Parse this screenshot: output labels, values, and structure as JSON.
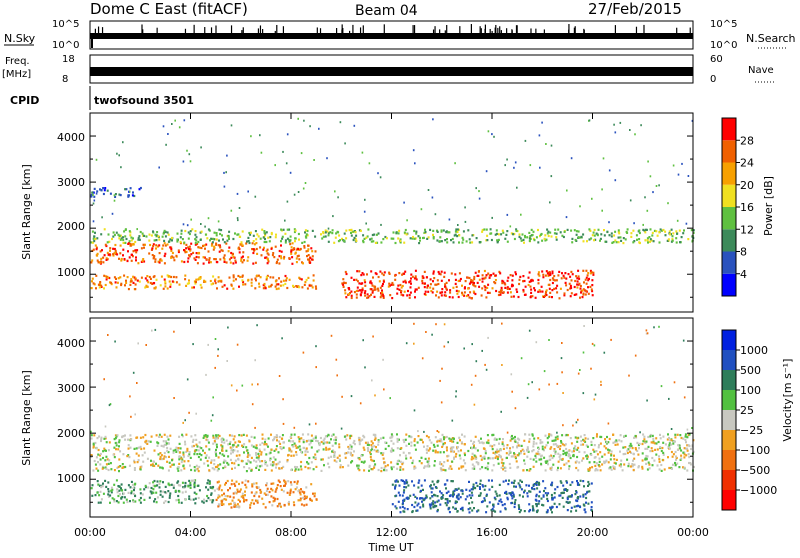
{
  "header": {
    "station": "Dome C East (fitACF)",
    "beam": "Beam 04",
    "date": "27/Feb/2015"
  },
  "noise_panel": {
    "left_label": "N.Sky",
    "left_ticks": [
      "10^5",
      "10^0"
    ],
    "right_label": "N.Search",
    "right_ticks": [
      "10^5",
      "10^0"
    ]
  },
  "freq_panel": {
    "left_label_top": "Freq.",
    "left_label_bottom": "[MHz]",
    "left_ticks": [
      "18",
      "8"
    ],
    "right_label": "Nave",
    "right_ticks": [
      "60",
      "0"
    ]
  },
  "cpid": {
    "label": "CPID",
    "value": "twofsound 3501"
  },
  "x_axis": {
    "label": "Time UT",
    "ticks": [
      "00:00",
      "04:00",
      "08:00",
      "12:00",
      "16:00",
      "20:00",
      "00:00"
    ]
  },
  "power_panel": {
    "ylabel": "Slant Range [km]",
    "yticks": [
      "1000",
      "2000",
      "3000",
      "4000"
    ],
    "colorbar_label": "Power [dB]",
    "colorbar_ticks": [
      "4",
      "8",
      "12",
      "16",
      "20",
      "24",
      "28"
    ],
    "colors": [
      "#0000ff",
      "#2a52be",
      "#3c8a5a",
      "#5fc040",
      "#f0e020",
      "#f7a000",
      "#f06000",
      "#ff0000"
    ]
  },
  "velocity_panel": {
    "ylabel": "Slant Range [km]",
    "yticks": [
      "1000",
      "2000",
      "3000",
      "4000"
    ],
    "colorbar_label_main": "Velocity",
    "colorbar_label_unit": "[m s⁻¹]",
    "colorbar_ticks": [
      "1000",
      "500",
      "100",
      "25",
      "−25",
      "−100",
      "−500",
      "−1000"
    ],
    "colors": [
      "#0020e0",
      "#2050c0",
      "#2e7d5a",
      "#52c040",
      "#c8c8c0",
      "#f0a020",
      "#f07010",
      "#f03000",
      "#ff0000"
    ]
  },
  "chart_data": [
    {
      "type": "line",
      "title": "N.Sky / N.Search",
      "x": [
        "00:00",
        "04:00",
        "08:00",
        "12:00",
        "16:00",
        "20:00",
        "00:00"
      ],
      "ylim": [
        "10^0",
        "10^5"
      ]
    },
    {
      "type": "line",
      "title": "Freq. [MHz] / Nave",
      "series": [
        {
          "name": "Freq. [MHz]",
          "ylim": [
            8,
            18
          ]
        },
        {
          "name": "Nave",
          "ylim": [
            0,
            60
          ]
        }
      ]
    },
    {
      "type": "heatmap",
      "ylabel": "Slant Range [km]",
      "xlabel": "Time UT",
      "xlim": [
        "00:00",
        "24:00"
      ],
      "ylim": [
        180,
        4500
      ],
      "colorbar": {
        "label": "Power [dB]",
        "range": [
          0,
          32
        ],
        "ticks": [
          4,
          8,
          12,
          16,
          20,
          24,
          28
        ]
      },
      "bands": [
        {
          "x_range": [
            "00:00",
            "09:00"
          ],
          "range_km": [
            1250,
            1700
          ],
          "power_db": 26
        },
        {
          "x_range": [
            "00:00",
            "09:00"
          ],
          "range_km": [
            700,
            1000
          ],
          "power_db": 24
        },
        {
          "x_range": [
            "10:00",
            "20:00"
          ],
          "range_km": [
            500,
            1100
          ],
          "power_db": 28
        },
        {
          "x_range": [
            "00:00",
            "24:00"
          ],
          "range_km": [
            1700,
            2000
          ],
          "power_db": 14
        },
        {
          "x_range": [
            "00:00",
            "02:00"
          ],
          "range_km": [
            2700,
            2900
          ],
          "power_db": 6
        }
      ]
    },
    {
      "type": "heatmap",
      "ylabel": "Slant Range [km]",
      "xlabel": "Time UT",
      "xlim": [
        "00:00",
        "24:00"
      ],
      "ylim": [
        180,
        4500
      ],
      "colorbar": {
        "label": "Velocity [m s⁻¹]",
        "ticks": [
          1000,
          500,
          100,
          25,
          -25,
          -100,
          -500,
          -1000
        ]
      },
      "bands": [
        {
          "x_range": [
            "00:00",
            "24:00"
          ],
          "range_km": [
            1200,
            2000
          ],
          "velocity": 0
        },
        {
          "x_range": [
            "00:00",
            "05:00"
          ],
          "range_km": [
            500,
            1000
          ],
          "velocity": 60
        },
        {
          "x_range": [
            "05:00",
            "09:00"
          ],
          "range_km": [
            400,
            1000
          ],
          "velocity": -60
        },
        {
          "x_range": [
            "12:00",
            "20:00"
          ],
          "range_km": [
            300,
            1000
          ],
          "velocity": 300
        }
      ]
    }
  ]
}
